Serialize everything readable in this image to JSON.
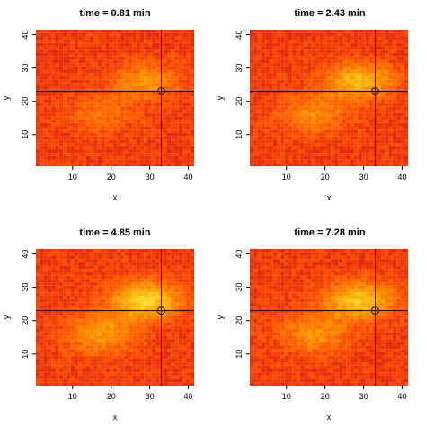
{
  "chart_data": [
    {
      "type": "heatmap",
      "title": "time = 0.81 min",
      "xlabel": "x",
      "ylabel": "y",
      "xlim": [
        0.5,
        41.5
      ],
      "ylim": [
        0.5,
        41.5
      ],
      "xticks": [
        "10",
        "20",
        "30",
        "40"
      ],
      "yticks": [
        "10",
        "20",
        "30",
        "40"
      ],
      "marker": {
        "x": 33,
        "y": 23
      },
      "color_scale": [
        "#e01c0c",
        "#ff5a00",
        "#ff9a00",
        "#ffd820",
        "#ffff60"
      ],
      "intensity": 0.55
    },
    {
      "type": "heatmap",
      "title": "time = 2.43 min",
      "xlabel": "x",
      "ylabel": "y",
      "xlim": [
        0.5,
        41.5
      ],
      "ylim": [
        0.5,
        41.5
      ],
      "xticks": [
        "10",
        "20",
        "30",
        "40"
      ],
      "yticks": [
        "10",
        "20",
        "30",
        "40"
      ],
      "marker": {
        "x": 33,
        "y": 23
      },
      "color_scale": [
        "#e01c0c",
        "#ff5a00",
        "#ff9a00",
        "#ffd820",
        "#ffff60"
      ],
      "intensity": 0.8
    },
    {
      "type": "heatmap",
      "title": "time = 4.85 min",
      "xlabel": "x",
      "ylabel": "y",
      "xlim": [
        0.5,
        41.5
      ],
      "ylim": [
        0.5,
        41.5
      ],
      "xticks": [
        "10",
        "20",
        "30",
        "40"
      ],
      "yticks": [
        "10",
        "20",
        "30",
        "40"
      ],
      "marker": {
        "x": 33,
        "y": 23
      },
      "color_scale": [
        "#e01c0c",
        "#ff5a00",
        "#ff9a00",
        "#ffd820",
        "#ffff60"
      ],
      "intensity": 1.0
    },
    {
      "type": "heatmap",
      "title": "time = 7.28 min",
      "xlabel": "x",
      "ylabel": "y",
      "xlim": [
        0.5,
        41.5
      ],
      "ylim": [
        0.5,
        41.5
      ],
      "xticks": [
        "10",
        "20",
        "30",
        "40"
      ],
      "yticks": [
        "10",
        "20",
        "30",
        "40"
      ],
      "marker": {
        "x": 33,
        "y": 23
      },
      "color_scale": [
        "#e01c0c",
        "#ff5a00",
        "#ff9a00",
        "#ffd820",
        "#ffff60"
      ],
      "intensity": 0.9
    }
  ]
}
